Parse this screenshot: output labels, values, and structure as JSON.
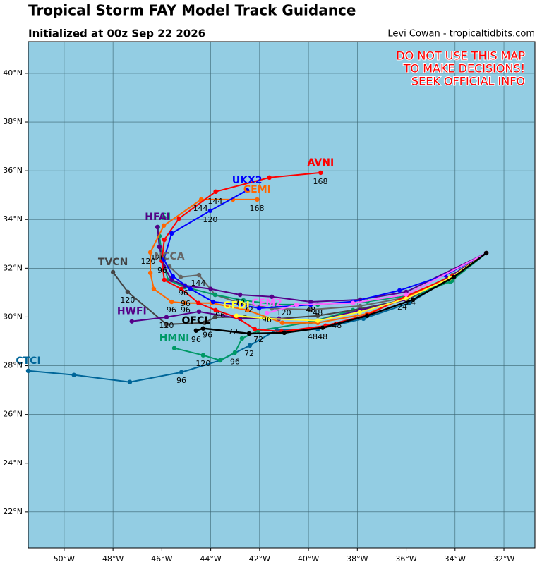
{
  "title": "Tropical Storm FAY Model Track Guidance",
  "subtitle": "Initialized at 00z Sep 22 2026",
  "credit": "Levi Cowan - tropicaltidbits.com",
  "warning": [
    "DO NOT USE THIS MAP",
    "TO MAKE DECISIONS!",
    "SEEK OFFICIAL INFO"
  ],
  "map": {
    "xlim": [
      -51.47,
      -30.73
    ],
    "ylim": [
      20.52,
      41.3
    ],
    "xticks": [
      {
        "value": -50,
        "label": "50°W"
      },
      {
        "value": -48,
        "label": "48°W"
      },
      {
        "value": -46,
        "label": "46°W"
      },
      {
        "value": -44,
        "label": "44°W"
      },
      {
        "value": -42,
        "label": "42°W"
      },
      {
        "value": -40,
        "label": "40°W"
      },
      {
        "value": -38,
        "label": "38°W"
      },
      {
        "value": -36,
        "label": "36°W"
      },
      {
        "value": -34,
        "label": "34°W"
      },
      {
        "value": -32,
        "label": "32°W"
      }
    ],
    "yticks": [
      {
        "value": 22,
        "label": "22°N"
      },
      {
        "value": 24,
        "label": "24°N"
      },
      {
        "value": 26,
        "label": "26°N"
      },
      {
        "value": 28,
        "label": "28°N"
      },
      {
        "value": 30,
        "label": "30°N"
      },
      {
        "value": 32,
        "label": "32°N"
      },
      {
        "value": 34,
        "label": "34°N"
      },
      {
        "value": 36,
        "label": "36°N"
      },
      {
        "value": 38,
        "label": "38°N"
      },
      {
        "value": 40,
        "label": "40°N"
      }
    ],
    "grid": true
  },
  "tracks": [
    {
      "name": "CTCI",
      "color": "#006699",
      "lon": [
        -32.72,
        -34.22,
        -35.87,
        -37.75,
        -39.62,
        -41.3,
        -42.4,
        -43.61,
        -45.2,
        -47.31,
        -49.6,
        -51.47
      ],
      "lat": [
        32.62,
        31.58,
        30.57,
        29.93,
        29.5,
        29.47,
        28.83,
        28.22,
        27.73,
        27.33,
        27.62,
        27.79
      ]
    },
    {
      "name": "HMNI",
      "color": "#009966",
      "lon": [
        -32.72,
        -34.13,
        -36.0,
        -38.18,
        -39.91,
        -42.05,
        -42.72,
        -43.01,
        -43.61,
        -44.31,
        -45.49
      ],
      "lat": [
        32.62,
        31.49,
        30.71,
        30.28,
        29.79,
        29.44,
        29.12,
        28.54,
        28.22,
        28.43,
        28.72
      ]
    },
    {
      "name": "TVCN",
      "color": "#444444",
      "lon": [
        -32.72,
        -34.1,
        -36.0,
        -37.89,
        -39.62,
        -41.21,
        -42.6,
        -43.82,
        -44.25,
        -45.81,
        -47.4,
        -48.0
      ],
      "lat": [
        32.62,
        31.72,
        30.71,
        30.33,
        30.05,
        29.93,
        29.99,
        29.99,
        29.76,
        29.7,
        31.03,
        31.84
      ]
    },
    {
      "name": "NCCA",
      "color": "#666666",
      "lon": [
        -32.72,
        -34.1,
        -36.0,
        -37.89,
        -39.9,
        -41.5,
        -42.9,
        -43.82,
        -44.48,
        -45.23,
        -45.69
      ],
      "lat": [
        32.62,
        31.72,
        30.8,
        30.45,
        30.3,
        30.35,
        30.6,
        30.91,
        31.72,
        31.64,
        32.07
      ]
    },
    {
      "name": "HWFI",
      "color": "#550088",
      "lon": [
        -32.72,
        -34.3,
        -36.0,
        -37.89,
        -39.62,
        -41.21,
        -42.8,
        -44.48,
        -45.81,
        -47.23
      ],
      "lat": [
        32.62,
        31.6,
        30.71,
        30.28,
        29.85,
        29.93,
        29.93,
        30.22,
        29.99,
        29.82
      ]
    },
    {
      "name": "HFSI",
      "color": "#009966",
      "lon": [
        -32.72,
        -34.2,
        -36.0,
        -37.59,
        -39.62,
        -41.3,
        -42.66,
        -43.82,
        -45.06,
        -45.75,
        -45.98,
        -46.1,
        -46.16
      ],
      "lat": [
        32.62,
        31.44,
        30.86,
        30.63,
        30.51,
        30.51,
        30.68,
        30.91,
        31.23,
        31.52,
        32.45,
        33.32,
        33.69
      ]
    },
    {
      "name": "HFAI",
      "color": "#550088",
      "lon": [
        -32.72,
        -36.0,
        -37.89,
        -39.91,
        -41.5,
        -42.8,
        -44.0,
        -45.06,
        -45.6,
        -45.92,
        -46.1,
        -46.18
      ],
      "lat": [
        32.62,
        31.03,
        30.71,
        30.62,
        30.83,
        30.91,
        31.15,
        31.29,
        31.52,
        32.07,
        32.88,
        33.69
      ]
    },
    {
      "name": "CEMI",
      "color": "#ff6600",
      "lon": [
        -32.72,
        -34.2,
        -36.0,
        -37.6,
        -39.62,
        -41.07,
        -42.51,
        -43.96,
        -45.06,
        -45.6,
        -46.33,
        -46.47,
        -46.47,
        -45.92,
        -44.39,
        -43.09,
        -42.1
      ],
      "lat": [
        32.62,
        31.6,
        30.8,
        30.13,
        29.76,
        29.76,
        30.28,
        30.57,
        30.57,
        30.62,
        31.15,
        31.81,
        32.65,
        33.75,
        34.82,
        34.82,
        34.82
      ]
    },
    {
      "name": "AVNI",
      "color": "#ff0000",
      "lon": [
        -32.72,
        -34.1,
        -36.0,
        -37.6,
        -39.3,
        -41.1,
        -42.2,
        -42.95,
        -43.8,
        -44.5,
        -45.2,
        -45.9,
        -46.0,
        -45.9,
        -45.3,
        -43.8,
        -41.6,
        -39.5
      ],
      "lat": [
        32.62,
        31.67,
        30.86,
        30.08,
        29.64,
        29.4,
        29.5,
        29.99,
        30.28,
        30.57,
        31.15,
        31.52,
        32.3,
        33.17,
        34.04,
        35.14,
        35.72,
        35.92
      ]
    },
    {
      "name": "UKX2",
      "color": "#0000ff",
      "lon": [
        -32.72,
        -34.4,
        -36.27,
        -38.18,
        -39.91,
        -42.02,
        -42.8,
        -43.9,
        -44.83,
        -45.55,
        -45.92,
        -45.6,
        -44.02,
        -42.51
      ],
      "lat": [
        32.62,
        31.72,
        31.09,
        30.63,
        30.5,
        30.36,
        30.5,
        30.62,
        31.15,
        31.67,
        32.36,
        33.43,
        34.36,
        35.2
      ]
    },
    {
      "name": "GFDI",
      "color": "#ffff33",
      "lon": [
        -32.72,
        -34.2,
        -36.0,
        -37.9,
        -39.62,
        -41.65,
        -42.95
      ],
      "lat": [
        32.62,
        31.6,
        30.75,
        30.2,
        29.85,
        29.93,
        30.05
      ]
    },
    {
      "name": "CEM2",
      "color": "#ff66ff",
      "lon": [
        -32.72,
        -36.0,
        -38.18,
        -40.49,
        -41.7
      ],
      "lat": [
        32.62,
        30.92,
        30.57,
        30.5,
        30.16
      ]
    },
    {
      "name": "OFCL",
      "color": "#000000",
      "lon": [
        -32.72,
        -34.05,
        -35.72,
        -37.6,
        -39.42,
        -40.99,
        -42.43,
        -44.31,
        -44.6
      ],
      "lat": [
        32.62,
        31.64,
        30.71,
        30.05,
        29.56,
        29.35,
        29.32,
        29.53,
        29.44
      ]
    }
  ],
  "hour_labels": [
    {
      "text": "168",
      "lon": -39.51,
      "lat": 35.54
    },
    {
      "text": "168",
      "lon": -42.11,
      "lat": 34.44
    },
    {
      "text": "144",
      "lon": -43.82,
      "lat": 34.73
    },
    {
      "text": "144",
      "lon": -44.42,
      "lat": 34.44
    },
    {
      "text": "120",
      "lon": -44.02,
      "lat": 33.98
    },
    {
      "text": "120",
      "lon": -46.16,
      "lat": 32.42
    },
    {
      "text": "120",
      "lon": -46.56,
      "lat": 32.27
    },
    {
      "text": "96",
      "lon": -45.98,
      "lat": 31.9
    },
    {
      "text": "144",
      "lon": -44.51,
      "lat": 31.38
    },
    {
      "text": "120",
      "lon": -47.4,
      "lat": 30.68
    },
    {
      "text": "96",
      "lon": -45.12,
      "lat": 30.97
    },
    {
      "text": "96",
      "lon": -45.03,
      "lat": 30.54
    },
    {
      "text": "96",
      "lon": -45.61,
      "lat": 30.28
    },
    {
      "text": "96",
      "lon": -45.03,
      "lat": 30.28
    },
    {
      "text": "72",
      "lon": -42.8,
      "lat": 30.57
    },
    {
      "text": "72",
      "lon": -42.46,
      "lat": 30.28
    },
    {
      "text": "96",
      "lon": -43.61,
      "lat": 30.05
    },
    {
      "text": "96",
      "lon": -41.71,
      "lat": 29.87
    },
    {
      "text": "120",
      "lon": -41.01,
      "lat": 30.16
    },
    {
      "text": "48",
      "lon": -39.91,
      "lat": 30.28
    },
    {
      "text": "48",
      "lon": -39.62,
      "lat": 30.16
    },
    {
      "text": "120",
      "lon": -45.81,
      "lat": 29.64
    },
    {
      "text": "72",
      "lon": -43.09,
      "lat": 29.38
    },
    {
      "text": "72",
      "lon": -42.05,
      "lat": 29.06
    },
    {
      "text": "72",
      "lon": -42.43,
      "lat": 28.48
    },
    {
      "text": "96",
      "lon": -44.6,
      "lat": 29.06
    },
    {
      "text": "96",
      "lon": -44.13,
      "lat": 29.24
    },
    {
      "text": "48",
      "lon": -39.83,
      "lat": 29.18
    },
    {
      "text": "48",
      "lon": -39.42,
      "lat": 29.18
    },
    {
      "text": "48",
      "lon": -38.84,
      "lat": 29.64
    },
    {
      "text": "24",
      "lon": -36.16,
      "lat": 30.39
    },
    {
      "text": "24",
      "lon": -35.81,
      "lat": 30.57
    },
    {
      "text": "120",
      "lon": -44.31,
      "lat": 28.08
    },
    {
      "text": "96",
      "lon": -43.01,
      "lat": 28.14
    },
    {
      "text": "96",
      "lon": -45.2,
      "lat": 27.38
    }
  ]
}
